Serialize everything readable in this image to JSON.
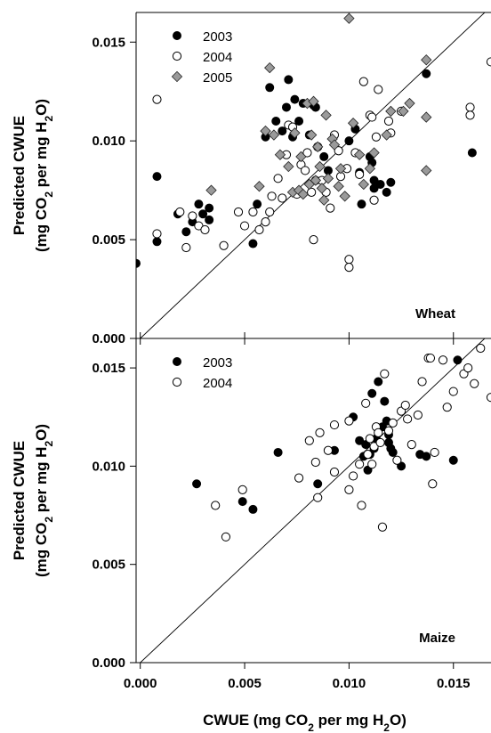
{
  "chart_data": [
    {
      "type": "scatter",
      "panel_label": "Wheat",
      "ylabel": [
        "Predicted CWUE",
        "(mg CO",
        "2",
        " per mg H",
        "2",
        "O)"
      ],
      "xlabel": "",
      "xlim": [
        -0.0002,
        0.0168
      ],
      "ylim": [
        0.0,
        0.0165
      ],
      "xticks": [],
      "yticks": [
        {
          "value": 0.0,
          "label": "0.000"
        },
        {
          "value": 0.005,
          "label": "0.005"
        },
        {
          "value": 0.01,
          "label": "0.010"
        },
        {
          "value": 0.015,
          "label": "0.015"
        }
      ],
      "reference_line": "1:1",
      "legend_position": "top-left",
      "series": [
        {
          "name": "2003",
          "marker": "filled-circle",
          "color": "#000000",
          "points": [
            [
              -0.0002,
              0.0038
            ],
            [
              0.0008,
              0.0082
            ],
            [
              0.0008,
              0.0049
            ],
            [
              0.0018,
              0.0063
            ],
            [
              0.0022,
              0.0054
            ],
            [
              0.0025,
              0.0059
            ],
            [
              0.0028,
              0.0068
            ],
            [
              0.003,
              0.0063
            ],
            [
              0.0033,
              0.006
            ],
            [
              0.0033,
              0.0066
            ],
            [
              0.0054,
              0.0048
            ],
            [
              0.0056,
              0.0068
            ],
            [
              0.006,
              0.0102
            ],
            [
              0.0062,
              0.0127
            ],
            [
              0.0065,
              0.011
            ],
            [
              0.0068,
              0.0105
            ],
            [
              0.007,
              0.0117
            ],
            [
              0.0071,
              0.0131
            ],
            [
              0.0073,
              0.0102
            ],
            [
              0.0074,
              0.0121
            ],
            [
              0.0076,
              0.011
            ],
            [
              0.0078,
              0.0119
            ],
            [
              0.0081,
              0.0103
            ],
            [
              0.0083,
              0.0118
            ],
            [
              0.0084,
              0.0117
            ],
            [
              0.0085,
              0.0097
            ],
            [
              0.0088,
              0.0092
            ],
            [
              0.009,
              0.0085
            ],
            [
              0.01,
              0.01
            ],
            [
              0.0103,
              0.0106
            ],
            [
              0.0105,
              0.0084
            ],
            [
              0.0106,
              0.0068
            ],
            [
              0.011,
              0.0092
            ],
            [
              0.0111,
              0.0089
            ],
            [
              0.0112,
              0.008
            ],
            [
              0.0112,
              0.0076
            ],
            [
              0.0115,
              0.0078
            ],
            [
              0.0118,
              0.0074
            ],
            [
              0.012,
              0.0079
            ],
            [
              0.0137,
              0.0134
            ],
            [
              0.0159,
              0.0094
            ]
          ]
        },
        {
          "name": "2004",
          "marker": "open-circle",
          "color": "#000000",
          "points": [
            [
              0.0008,
              0.0121
            ],
            [
              0.0008,
              0.0053
            ],
            [
              0.0019,
              0.0064
            ],
            [
              0.0022,
              0.0046
            ],
            [
              0.0025,
              0.0062
            ],
            [
              0.0028,
              0.0057
            ],
            [
              0.0031,
              0.0055
            ],
            [
              0.004,
              0.0047
            ],
            [
              0.0047,
              0.0064
            ],
            [
              0.005,
              0.0057
            ],
            [
              0.0054,
              0.0064
            ],
            [
              0.0057,
              0.0055
            ],
            [
              0.006,
              0.0059
            ],
            [
              0.0062,
              0.0064
            ],
            [
              0.0063,
              0.0072
            ],
            [
              0.0066,
              0.0081
            ],
            [
              0.0068,
              0.0071
            ],
            [
              0.007,
              0.0093
            ],
            [
              0.0071,
              0.0108
            ],
            [
              0.0073,
              0.0107
            ],
            [
              0.0075,
              0.0073
            ],
            [
              0.0077,
              0.0088
            ],
            [
              0.0079,
              0.0085
            ],
            [
              0.008,
              0.0094
            ],
            [
              0.0082,
              0.0074
            ],
            [
              0.0083,
              0.005
            ],
            [
              0.0084,
              0.008
            ],
            [
              0.0085,
              0.0097
            ],
            [
              0.0087,
              0.008
            ],
            [
              0.0089,
              0.0074
            ],
            [
              0.0091,
              0.0066
            ],
            [
              0.0093,
              0.0103
            ],
            [
              0.0095,
              0.0095
            ],
            [
              0.0096,
              0.0082
            ],
            [
              0.0099,
              0.0086
            ],
            [
              0.01,
              0.004
            ],
            [
              0.01,
              0.0036
            ],
            [
              0.0103,
              0.0094
            ],
            [
              0.0105,
              0.0083
            ],
            [
              0.0107,
              0.013
            ],
            [
              0.011,
              0.0113
            ],
            [
              0.0111,
              0.0112
            ],
            [
              0.0112,
              0.007
            ],
            [
              0.0113,
              0.0102
            ],
            [
              0.0114,
              0.0126
            ],
            [
              0.0119,
              0.011
            ],
            [
              0.012,
              0.0104
            ],
            [
              0.0125,
              0.0115
            ],
            [
              0.0158,
              0.0117
            ],
            [
              0.0158,
              0.0113
            ],
            [
              0.0168,
              0.014
            ]
          ]
        },
        {
          "name": "2005",
          "marker": "gray-diamond",
          "color": "#999999",
          "points": [
            [
              0.0034,
              0.0075
            ],
            [
              0.0057,
              0.0077
            ],
            [
              0.006,
              0.0105
            ],
            [
              0.0062,
              0.0137
            ],
            [
              0.0064,
              0.0103
            ],
            [
              0.0067,
              0.0093
            ],
            [
              0.0071,
              0.0087
            ],
            [
              0.0073,
              0.0074
            ],
            [
              0.0074,
              0.0104
            ],
            [
              0.0076,
              0.0075
            ],
            [
              0.0077,
              0.0092
            ],
            [
              0.0078,
              0.0073
            ],
            [
              0.008,
              0.0119
            ],
            [
              0.0081,
              0.0078
            ],
            [
              0.0082,
              0.0103
            ],
            [
              0.0083,
              0.012
            ],
            [
              0.0084,
              0.008
            ],
            [
              0.0085,
              0.0097
            ],
            [
              0.0086,
              0.0087
            ],
            [
              0.0087,
              0.0076
            ],
            [
              0.0088,
              0.007
            ],
            [
              0.0089,
              0.0113
            ],
            [
              0.009,
              0.0081
            ],
            [
              0.0092,
              0.0101
            ],
            [
              0.0093,
              0.0098
            ],
            [
              0.0095,
              0.0077
            ],
            [
              0.0096,
              0.0086
            ],
            [
              0.0098,
              0.0072
            ],
            [
              0.01,
              0.0162
            ],
            [
              0.0102,
              0.0109
            ],
            [
              0.0105,
              0.0093
            ],
            [
              0.0107,
              0.0078
            ],
            [
              0.011,
              0.0086
            ],
            [
              0.0112,
              0.0094
            ],
            [
              0.0118,
              0.0103
            ],
            [
              0.012,
              0.0115
            ],
            [
              0.0126,
              0.0115
            ],
            [
              0.0129,
              0.0119
            ],
            [
              0.0137,
              0.0141
            ],
            [
              0.0137,
              0.0112
            ],
            [
              0.0137,
              0.0085
            ]
          ]
        }
      ]
    },
    {
      "type": "scatter",
      "panel_label": "Maize",
      "ylabel": [
        "Predicted CWUE",
        "(mg CO",
        "2",
        " per mg H",
        "2",
        "O)"
      ],
      "xlabel": [
        "CWUE (mg CO",
        "2",
        " per mg H",
        "2",
        "O)"
      ],
      "xlim": [
        -0.0002,
        0.0168
      ],
      "ylim": [
        0.0,
        0.0165
      ],
      "xticks": [
        {
          "value": 0.0,
          "label": "0.000"
        },
        {
          "value": 0.005,
          "label": "0.005"
        },
        {
          "value": 0.01,
          "label": "0.010"
        },
        {
          "value": 0.015,
          "label": "0.015"
        }
      ],
      "yticks": [
        {
          "value": 0.0,
          "label": "0.000"
        },
        {
          "value": 0.005,
          "label": "0.005"
        },
        {
          "value": 0.01,
          "label": "0.010"
        },
        {
          "value": 0.015,
          "label": "0.015"
        }
      ],
      "reference_line": "1:1",
      "legend_position": "top-left",
      "series": [
        {
          "name": "2003",
          "marker": "filled-circle",
          "color": "#000000",
          "points": [
            [
              0.0027,
              0.0091
            ],
            [
              0.0049,
              0.0082
            ],
            [
              0.0054,
              0.0078
            ],
            [
              0.0066,
              0.0107
            ],
            [
              0.0085,
              0.0091
            ],
            [
              0.0093,
              0.0108
            ],
            [
              0.0102,
              0.0125
            ],
            [
              0.0105,
              0.0113
            ],
            [
              0.0107,
              0.0105
            ],
            [
              0.0108,
              0.0111
            ],
            [
              0.0109,
              0.0098
            ],
            [
              0.011,
              0.0106
            ],
            [
              0.0111,
              0.0137
            ],
            [
              0.0112,
              0.0109
            ],
            [
              0.0113,
              0.0114
            ],
            [
              0.0114,
              0.0143
            ],
            [
              0.0116,
              0.012
            ],
            [
              0.0117,
              0.0133
            ],
            [
              0.0118,
              0.0123
            ],
            [
              0.0119,
              0.0112
            ],
            [
              0.0119,
              0.0116
            ],
            [
              0.012,
              0.0109
            ],
            [
              0.0121,
              0.0107
            ],
            [
              0.0125,
              0.01
            ],
            [
              0.0134,
              0.0106
            ],
            [
              0.0137,
              0.0105
            ],
            [
              0.015,
              0.0103
            ],
            [
              0.0152,
              0.0154
            ]
          ]
        },
        {
          "name": "2004",
          "marker": "open-circle",
          "color": "#000000",
          "points": [
            [
              0.0036,
              0.008
            ],
            [
              0.0041,
              0.0064
            ],
            [
              0.0049,
              0.0088
            ],
            [
              0.0076,
              0.0094
            ],
            [
              0.0081,
              0.0113
            ],
            [
              0.0084,
              0.0102
            ],
            [
              0.0085,
              0.0084
            ],
            [
              0.0086,
              0.0117
            ],
            [
              0.009,
              0.0108
            ],
            [
              0.0093,
              0.0097
            ],
            [
              0.0093,
              0.0121
            ],
            [
              0.01,
              0.0088
            ],
            [
              0.01,
              0.0123
            ],
            [
              0.0102,
              0.0095
            ],
            [
              0.0105,
              0.0101
            ],
            [
              0.0106,
              0.008
            ],
            [
              0.0108,
              0.0132
            ],
            [
              0.0109,
              0.0106
            ],
            [
              0.011,
              0.0114
            ],
            [
              0.0111,
              0.0101
            ],
            [
              0.0112,
              0.011
            ],
            [
              0.0113,
              0.012
            ],
            [
              0.0114,
              0.0117
            ],
            [
              0.0115,
              0.0112
            ],
            [
              0.0116,
              0.0069
            ],
            [
              0.0117,
              0.0147
            ],
            [
              0.0119,
              0.0118
            ],
            [
              0.0121,
              0.0122
            ],
            [
              0.0123,
              0.0103
            ],
            [
              0.0125,
              0.0128
            ],
            [
              0.0127,
              0.0131
            ],
            [
              0.0128,
              0.0124
            ],
            [
              0.013,
              0.0111
            ],
            [
              0.0133,
              0.0126
            ],
            [
              0.0135,
              0.0143
            ],
            [
              0.0138,
              0.0155
            ],
            [
              0.0139,
              0.0155
            ],
            [
              0.014,
              0.0091
            ],
            [
              0.0141,
              0.0107
            ],
            [
              0.0143,
              0.0171
            ],
            [
              0.0145,
              0.0154
            ],
            [
              0.0147,
              0.013
            ],
            [
              0.015,
              0.0138
            ],
            [
              0.0155,
              0.0147
            ],
            [
              0.0157,
              0.015
            ],
            [
              0.016,
              0.0142
            ],
            [
              0.0163,
              0.016
            ],
            [
              0.0168,
              0.0135
            ]
          ]
        }
      ]
    }
  ]
}
